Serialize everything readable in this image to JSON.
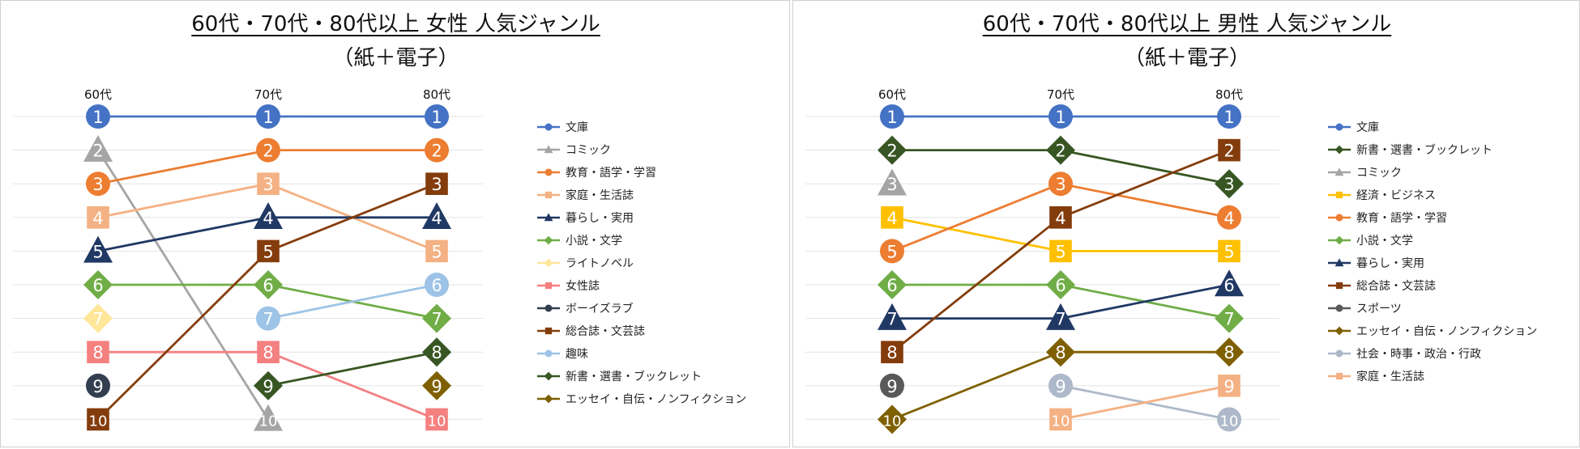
{
  "chart_data": [
    {
      "type": "line",
      "title": "60代・70代・80代以上 女性 人気ジャンル",
      "subtitle": "（紙＋電子）",
      "categories": [
        "60代",
        "70代",
        "80代"
      ],
      "y_meaning": "rank (1 = most popular)",
      "ylim": [
        1,
        10
      ],
      "legend_position": "right",
      "series": [
        {
          "name": "文庫",
          "ranks": [
            1,
            1,
            1
          ],
          "color": "#4472C4",
          "marker": "circle"
        },
        {
          "name": "コミック",
          "ranks": [
            2,
            10,
            null
          ],
          "color": "#A5A5A5",
          "marker": "triangle"
        },
        {
          "name": "教育・語学・学習",
          "ranks": [
            3,
            2,
            2
          ],
          "color": "#ED7D31",
          "marker": "circle"
        },
        {
          "name": "家庭・生活誌",
          "ranks": [
            4,
            3,
            5
          ],
          "color": "#F4B183",
          "marker": "square"
        },
        {
          "name": "暮らし・実用",
          "ranks": [
            5,
            4,
            4
          ],
          "color": "#203864",
          "marker": "triangle"
        },
        {
          "name": "小説・文学",
          "ranks": [
            6,
            6,
            7
          ],
          "color": "#70AD47",
          "marker": "diamond"
        },
        {
          "name": "ライトノベル",
          "ranks": [
            7,
            null,
            null
          ],
          "color": "#FFE699",
          "marker": "diamond"
        },
        {
          "name": "女性誌",
          "ranks": [
            8,
            8,
            10
          ],
          "color": "#F4807F",
          "marker": "square"
        },
        {
          "name": "ボーイズラブ",
          "ranks": [
            9,
            null,
            null
          ],
          "color": "#333F50",
          "marker": "circle"
        },
        {
          "name": "総合誌・文芸誌",
          "ranks": [
            10,
            5,
            3
          ],
          "color": "#843C0C",
          "marker": "square"
        },
        {
          "name": "趣味",
          "ranks": [
            null,
            7,
            6
          ],
          "color": "#9DC3E6",
          "marker": "circle"
        },
        {
          "name": "新書・選書・ブックレット",
          "ranks": [
            null,
            9,
            8
          ],
          "color": "#375623",
          "marker": "diamond"
        },
        {
          "name": "エッセイ・自伝・ノンフィクション",
          "ranks": [
            null,
            null,
            9
          ],
          "color": "#7F6000",
          "marker": "diamond"
        }
      ]
    },
    {
      "type": "line",
      "title": "60代・70代・80代以上 男性 人気ジャンル",
      "subtitle": "（紙＋電子）",
      "categories": [
        "60代",
        "70代",
        "80代"
      ],
      "y_meaning": "rank (1 = most popular)",
      "ylim": [
        1,
        10
      ],
      "legend_position": "right",
      "series": [
        {
          "name": "文庫",
          "ranks": [
            1,
            1,
            1
          ],
          "color": "#4472C4",
          "marker": "circle"
        },
        {
          "name": "新書・選書・ブックレット",
          "ranks": [
            2,
            2,
            3
          ],
          "color": "#375623",
          "marker": "diamond"
        },
        {
          "name": "コミック",
          "ranks": [
            3,
            null,
            null
          ],
          "color": "#A5A5A5",
          "marker": "triangle"
        },
        {
          "name": "経済・ビジネス",
          "ranks": [
            4,
            5,
            5
          ],
          "color": "#FFC000",
          "marker": "square"
        },
        {
          "name": "教育・語学・学習",
          "ranks": [
            5,
            3,
            4
          ],
          "color": "#ED7D31",
          "marker": "circle"
        },
        {
          "name": "小説・文学",
          "ranks": [
            6,
            6,
            7
          ],
          "color": "#70AD47",
          "marker": "diamond"
        },
        {
          "name": "暮らし・実用",
          "ranks": [
            7,
            7,
            6
          ],
          "color": "#203864",
          "marker": "triangle"
        },
        {
          "name": "総合誌・文芸誌",
          "ranks": [
            8,
            4,
            2
          ],
          "color": "#843C0C",
          "marker": "square"
        },
        {
          "name": "スポーツ",
          "ranks": [
            9,
            null,
            null
          ],
          "color": "#595959",
          "marker": "circle"
        },
        {
          "name": "エッセイ・自伝・ノンフィクション",
          "ranks": [
            10,
            8,
            8
          ],
          "color": "#7F6000",
          "marker": "diamond"
        },
        {
          "name": "社会・時事・政治・行政",
          "ranks": [
            null,
            9,
            10
          ],
          "color": "#ADB9CA",
          "marker": "circle"
        },
        {
          "name": "家庭・生活誌",
          "ranks": [
            null,
            10,
            9
          ],
          "color": "#F4B183",
          "marker": "square"
        }
      ]
    }
  ]
}
